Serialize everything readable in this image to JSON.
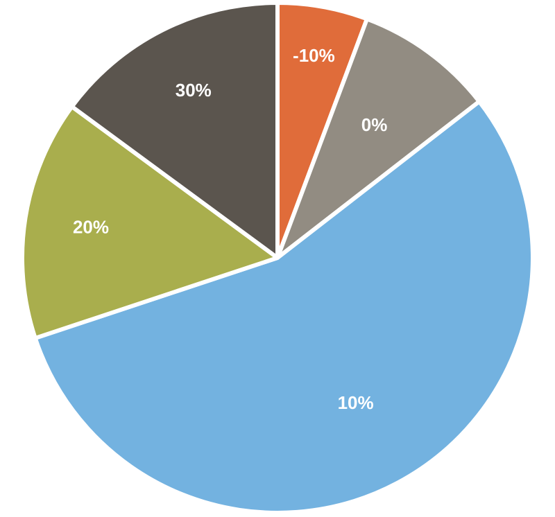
{
  "chart_data": {
    "type": "pie",
    "title": "",
    "legend": "none",
    "slices": [
      {
        "label": "-10%",
        "value": 5.7,
        "color": "#E06C3A"
      },
      {
        "label": "0%",
        "value": 8.8,
        "color": "#928C82"
      },
      {
        "label": "10%",
        "value": 55.4,
        "color": "#73B2E0"
      },
      {
        "label": "20%",
        "value": 15.2,
        "color": "#A9AE4D"
      },
      {
        "label": "30%",
        "value": 14.9,
        "color": "#5B554E"
      }
    ]
  }
}
